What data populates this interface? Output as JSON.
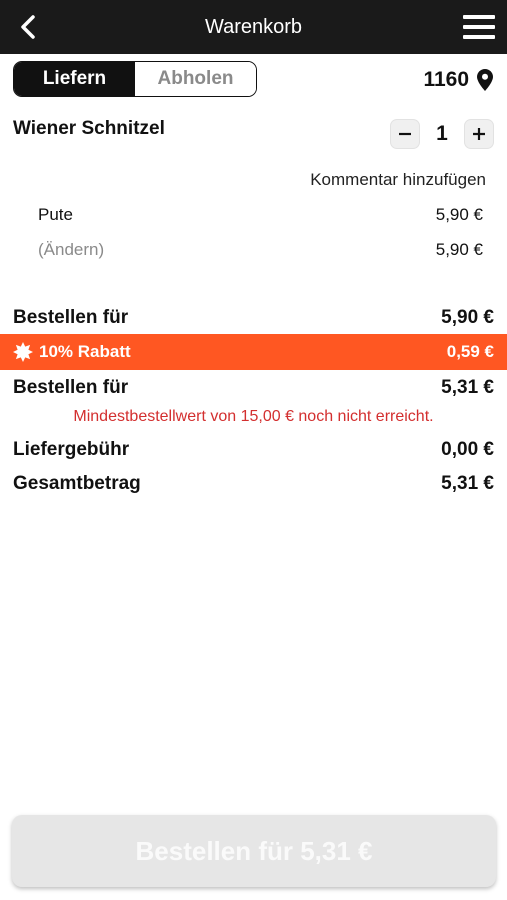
{
  "header": {
    "title": "Warenkorb"
  },
  "delivery_toggle": {
    "options": [
      "Liefern",
      "Abholen"
    ],
    "selected": "Liefern"
  },
  "location": {
    "postal_code": "1160"
  },
  "cart_item": {
    "name": "Wiener Schnitzel",
    "quantity": "1",
    "comment_link": "Kommentar hinzufügen",
    "options": [
      {
        "label": "Pute",
        "price": "5,90 €"
      },
      {
        "label": "(Ändern)",
        "price": "5,90 €"
      }
    ]
  },
  "summary": {
    "subtotal_label": "Bestellen für",
    "subtotal_value": "5,90 €",
    "discount_label": "10% Rabatt",
    "discount_value": "0,59 €",
    "after_discount_label": "Bestellen für",
    "after_discount_value": "5,31 €",
    "warning": "Mindestbestellwert von 15,00 € noch nicht erreicht.",
    "delivery_fee_label": "Liefergebühr",
    "delivery_fee_value": "0,00 €",
    "total_label": "Gesamtbetrag",
    "total_value": "5,31 €"
  },
  "order_button": {
    "label": "Bestellen für 5,31 €"
  },
  "colors": {
    "topbar": "#1a1a1a",
    "accent": "#ff5722",
    "warning": "#d32f2f",
    "button_disabled": "#e6e6e6"
  },
  "icons": {
    "back": "chevron-left-icon",
    "menu": "hamburger-menu-icon",
    "location": "map-pin-icon",
    "discount": "badge-burst-icon"
  }
}
